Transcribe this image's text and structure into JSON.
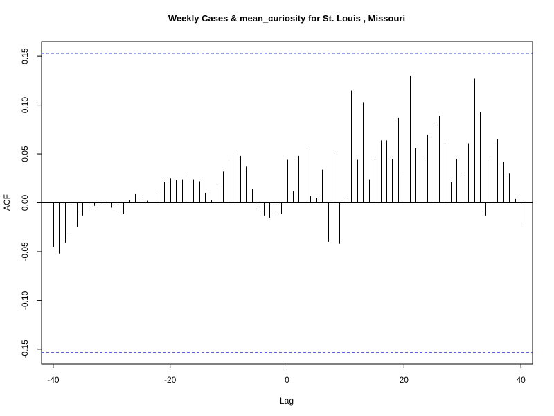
{
  "chart_data": {
    "type": "bar",
    "title": "Weekly Cases & mean_curiosity for St. Louis , Missouri",
    "xlabel": "Lag",
    "ylabel": "ACF",
    "xlim": [
      -42,
      42
    ],
    "ylim": [
      -0.165,
      0.165
    ],
    "x_ticks": [
      -40,
      -20,
      0,
      20,
      40
    ],
    "y_ticks": [
      -0.15,
      -0.1,
      -0.05,
      0.0,
      0.05,
      0.1,
      0.15
    ],
    "y_tick_labels": [
      "-0.15",
      "-0.10",
      "-0.05",
      "0.00",
      "0.05",
      "0.10",
      "0.15"
    ],
    "x_tick_labels": [
      "-40",
      "-20",
      "0",
      "20",
      "40"
    ],
    "confidence_bound": 0.153,
    "grid": false,
    "colors": {
      "bars": "#000000",
      "bounds": "#0000cc",
      "zero_line": "#000000"
    },
    "lags": [
      -40,
      -39,
      -38,
      -37,
      -36,
      -35,
      -34,
      -33,
      -32,
      -31,
      -30,
      -29,
      -28,
      -27,
      -26,
      -25,
      -24,
      -23,
      -22,
      -21,
      -20,
      -19,
      -18,
      -17,
      -16,
      -15,
      -14,
      -13,
      -12,
      -11,
      -10,
      -9,
      -8,
      -7,
      -6,
      -5,
      -4,
      -3,
      -2,
      -1,
      0,
      1,
      2,
      3,
      4,
      5,
      6,
      7,
      8,
      9,
      10,
      11,
      12,
      13,
      14,
      15,
      16,
      17,
      18,
      19,
      20,
      21,
      22,
      23,
      24,
      25,
      26,
      27,
      28,
      29,
      30,
      31,
      32,
      33,
      34,
      35,
      36,
      37,
      38,
      39,
      40
    ],
    "values": [
      -0.045,
      -0.052,
      -0.041,
      -0.032,
      -0.025,
      -0.013,
      -0.006,
      -0.003,
      0.001,
      0.001,
      -0.005,
      -0.009,
      -0.011,
      0.003,
      0.009,
      0.008,
      0.002,
      0.0,
      0.01,
      0.021,
      0.025,
      0.023,
      0.024,
      0.027,
      0.024,
      0.022,
      0.01,
      0.003,
      0.019,
      0.032,
      0.043,
      0.049,
      0.048,
      0.037,
      0.014,
      -0.006,
      -0.013,
      -0.016,
      -0.012,
      -0.011,
      0.044,
      0.012,
      0.048,
      0.055,
      0.007,
      0.005,
      0.034,
      -0.04,
      0.05,
      -0.042,
      0.007,
      0.115,
      0.044,
      0.103,
      0.024,
      0.048,
      0.064,
      0.064,
      0.045,
      0.087,
      0.026,
      0.13,
      0.056,
      0.044,
      0.07,
      0.079,
      0.089,
      0.065,
      0.021,
      0.045,
      0.03,
      0.061,
      0.127,
      0.093,
      -0.013,
      0.044,
      0.065,
      0.042,
      0.03,
      0.004,
      -0.025
    ]
  }
}
